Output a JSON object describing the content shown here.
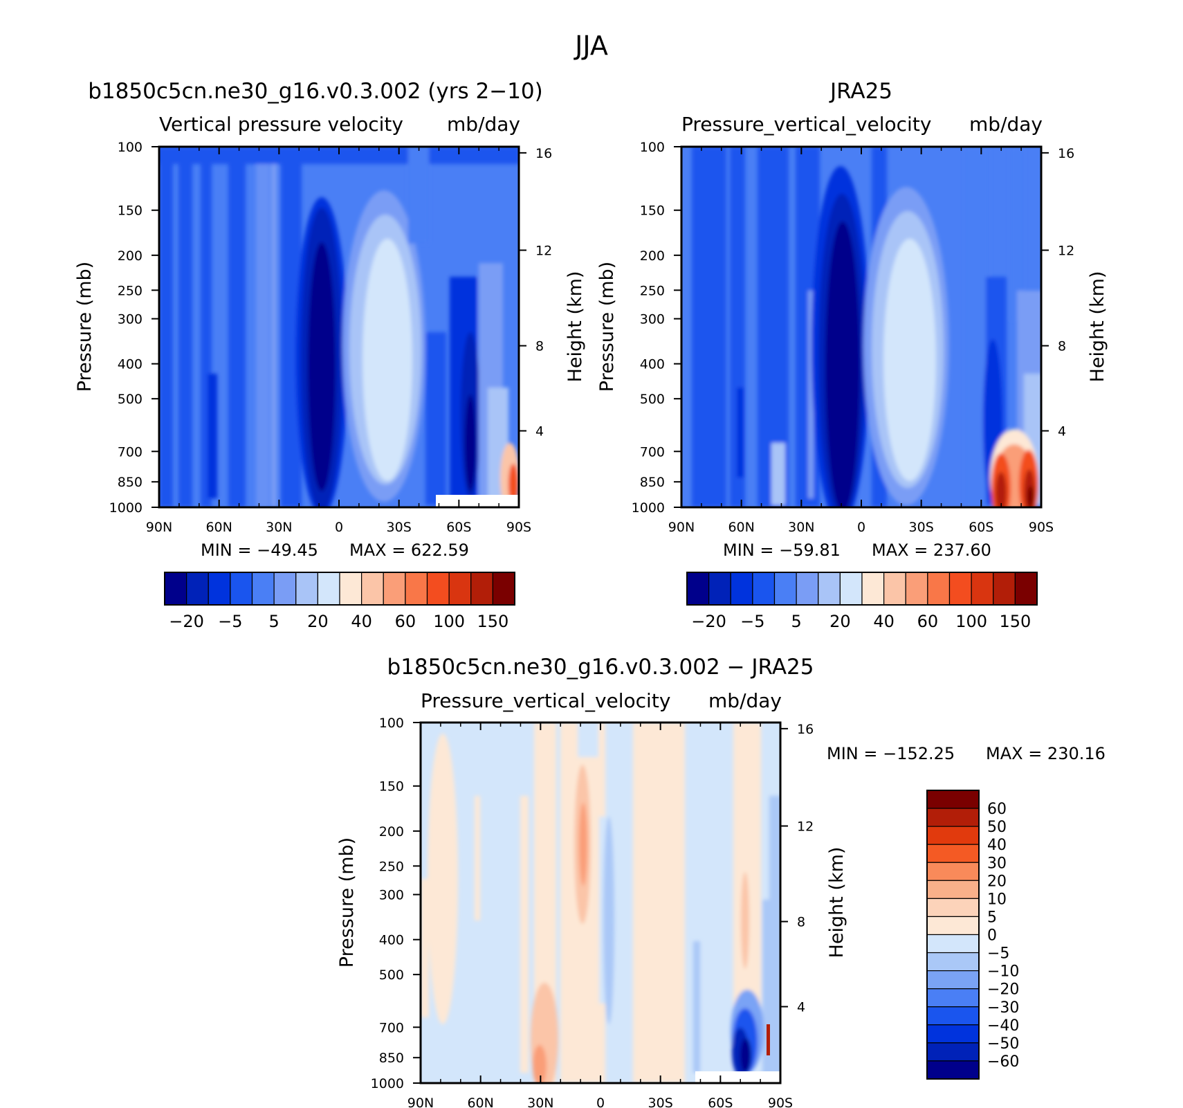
{
  "figure_title": "JJA",
  "chart_data": [
    {
      "type": "heatmap",
      "panel": "model",
      "title": "b1850c5cn.ne30_g16.v0.3.002 (yrs 2−10)",
      "subtitle_left": "Vertical pressure velocity",
      "subtitle_right": "mb/day",
      "ylabel": "Pressure (mb)",
      "ylabel_right": "Height (km)",
      "x_ticks": [
        "90N",
        "60N",
        "30N",
        "0",
        "30S",
        "60S",
        "90S"
      ],
      "y_ticks": [
        "100",
        "150",
        "200",
        "250",
        "300",
        "400",
        "500",
        "700",
        "850",
        "1000"
      ],
      "y_right_ticks": [
        "16",
        "12",
        "8",
        "4"
      ],
      "min_label": "MIN = −49.45",
      "max_label": "MAX = 622.59",
      "min": -49.45,
      "max": 622.59,
      "colorbar_labels": [
        "−20",
        "−5",
        "5",
        "20",
        "40",
        "60",
        "100",
        "150"
      ]
    },
    {
      "type": "heatmap",
      "panel": "obs",
      "title": "JRA25",
      "subtitle_left": "Pressure_vertical_velocity",
      "subtitle_right": "mb/day",
      "ylabel": "Pressure (mb)",
      "ylabel_right": "Height (km)",
      "x_ticks": [
        "90N",
        "60N",
        "30N",
        "0",
        "30S",
        "60S",
        "90S"
      ],
      "y_ticks": [
        "100",
        "150",
        "200",
        "250",
        "300",
        "400",
        "500",
        "700",
        "850",
        "1000"
      ],
      "y_right_ticks": [
        "16",
        "12",
        "8",
        "4"
      ],
      "min_label": "MIN = −59.81",
      "max_label": "MAX = 237.60",
      "min": -59.81,
      "max": 237.6,
      "colorbar_labels": [
        "−20",
        "−5",
        "5",
        "20",
        "40",
        "60",
        "100",
        "150"
      ]
    },
    {
      "type": "heatmap",
      "panel": "diff",
      "title": "b1850c5cn.ne30_g16.v0.3.002 − JRA25",
      "subtitle_left": "Pressure_vertical_velocity",
      "subtitle_right": "mb/day",
      "ylabel": "Pressure (mb)",
      "ylabel_right": "Height (km)",
      "x_ticks": [
        "90N",
        "60N",
        "30N",
        "0",
        "30S",
        "60S",
        "90S"
      ],
      "y_ticks": [
        "100",
        "150",
        "200",
        "250",
        "300",
        "400",
        "500",
        "700",
        "850",
        "1000"
      ],
      "y_right_ticks": [
        "16",
        "12",
        "8",
        "4"
      ],
      "min_label": "MIN = −152.25",
      "max_label": "MAX = 230.16",
      "min": -152.25,
      "max": 230.16,
      "colorbar_labels": [
        "60",
        "50",
        "40",
        "30",
        "20",
        "10",
        "5",
        "0",
        "−5",
        "−10",
        "−20",
        "−30",
        "−40",
        "−50",
        "−60"
      ]
    }
  ],
  "colors": {
    "absolute_scale": [
      "#00008b",
      "#0022b8",
      "#0033dd",
      "#1a55ee",
      "#4a7ff5",
      "#7a9df5",
      "#a9c4f7",
      "#d3e6fb",
      "#fde8d6",
      "#fbc5a8",
      "#fa9e78",
      "#f97748",
      "#f34d1f",
      "#d93510",
      "#b21e08",
      "#7a0000"
    ],
    "diff_scale": [
      "#7a0000",
      "#b21e08",
      "#e13a0d",
      "#f45a24",
      "#f98a5a",
      "#f9b08a",
      "#fcd3ba",
      "#fde8d6",
      "#d3e6fb",
      "#aac8f7",
      "#7aa3f5",
      "#4a7ff5",
      "#1a55ee",
      "#0033dd",
      "#0022b8",
      "#00008b"
    ]
  }
}
